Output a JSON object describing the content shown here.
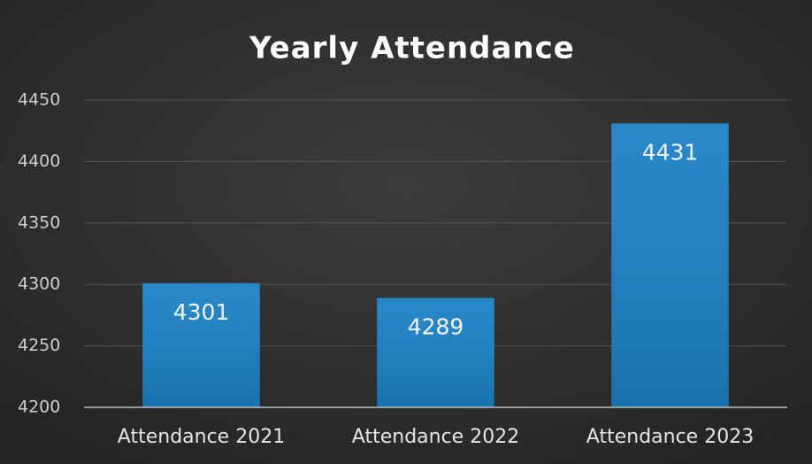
{
  "chart_data": {
    "type": "bar",
    "title": "Yearly Attendance",
    "categories": [
      "Attendance 2021",
      "Attendance 2022",
      "Attendance 2023"
    ],
    "values": [
      4301,
      4289,
      4431
    ],
    "color": "#1a80c4",
    "ylim": [
      4200,
      4450
    ],
    "yticks": [
      4200,
      4250,
      4300,
      4350,
      4400,
      4450
    ],
    "grid": true
  }
}
